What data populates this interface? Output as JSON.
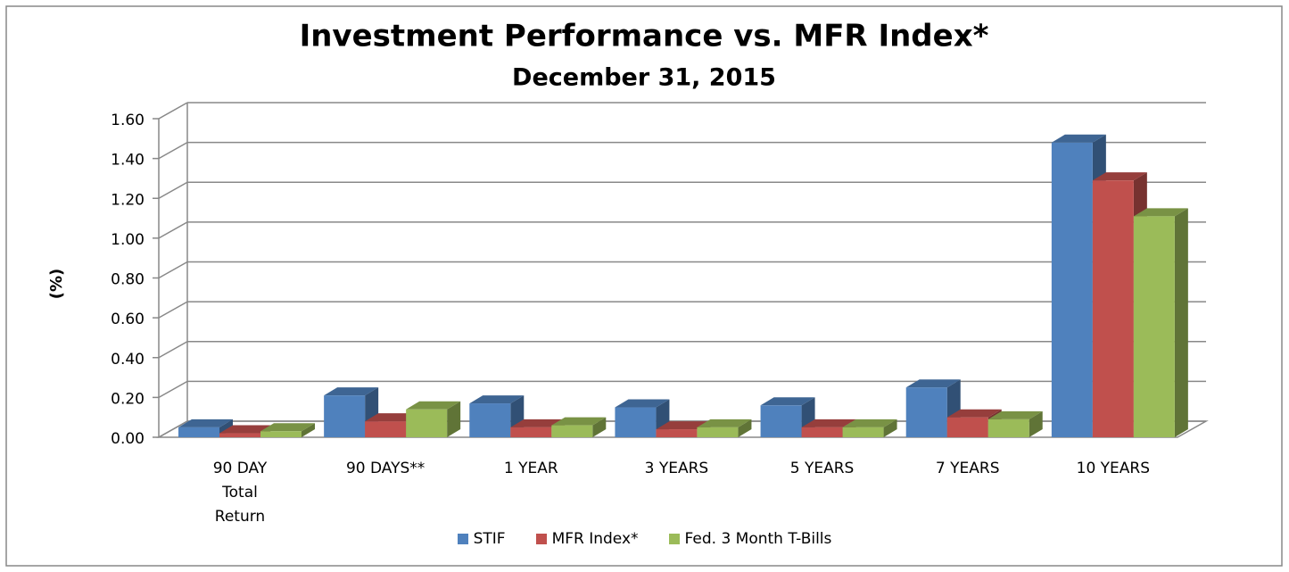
{
  "chart_data": {
    "type": "bar3d",
    "title": "Investment Performance vs. MFR Index*",
    "subtitle": "December 31, 2015",
    "y_label": "(%)",
    "categories": [
      "90 DAY\nTotal\nReturn",
      "90 DAYS**",
      "1 YEAR",
      "3 YEARS",
      "5 YEARS",
      "7 YEARS",
      "10 YEARS"
    ],
    "series": [
      {
        "name": "STIF",
        "color": "#4f81bd",
        "values": [
          0.05,
          0.21,
          0.17,
          0.15,
          0.16,
          0.25,
          1.48
        ]
      },
      {
        "name": "MFR Index*",
        "color": "#c0504d",
        "values": [
          0.02,
          0.08,
          0.05,
          0.04,
          0.05,
          0.1,
          1.29
        ]
      },
      {
        "name": "Fed. 3 Month T-Bills",
        "color": "#9bbb59",
        "values": [
          0.03,
          0.14,
          0.06,
          0.05,
          0.05,
          0.09,
          1.11
        ]
      }
    ],
    "ylim": [
      0,
      1.6
    ],
    "yticks": [
      {
        "value": 0,
        "label": "0.00"
      },
      {
        "value": 0.2,
        "label": "0.20"
      },
      {
        "value": 0.4,
        "label": "0.40"
      },
      {
        "value": 0.6,
        "label": "0.60"
      },
      {
        "value": 0.8,
        "label": "0.80"
      },
      {
        "value": 1.0,
        "label": "1.00"
      },
      {
        "value": 1.2,
        "label": "1.20"
      },
      {
        "value": 1.4,
        "label": "1.40"
      },
      {
        "value": 1.6,
        "label": "1.60"
      }
    ],
    "grid": true,
    "legend": "bottom"
  }
}
